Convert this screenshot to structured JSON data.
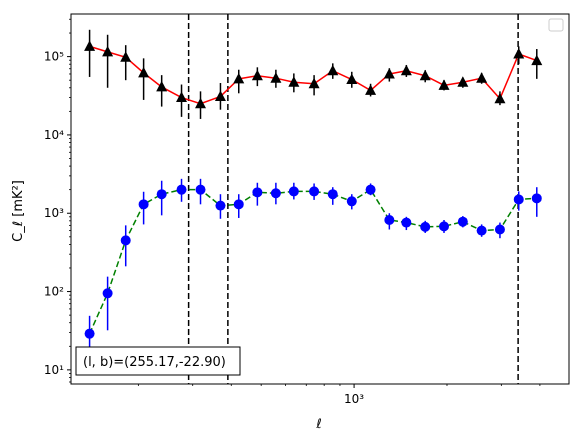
{
  "chart_data": {
    "type": "line",
    "xlabel": "ℓ",
    "ylabel": "C_ℓ [mK²]",
    "xscale": "log",
    "yscale": "log",
    "xlim": [
      121,
      4970
    ],
    "ylim": [
      6.6,
      350000
    ],
    "x_ticks": [
      {
        "value": 1000,
        "label": "10³"
      }
    ],
    "y_ticks": [
      {
        "value": 10,
        "label": "10¹"
      },
      {
        "value": 100,
        "label": "10²"
      },
      {
        "value": 1000,
        "label": "10³"
      },
      {
        "value": 10000,
        "label": "10⁴"
      },
      {
        "value": 100000,
        "label": "10⁵"
      }
    ],
    "annotation": "(l, b)=(255.17,-22.90)",
    "vlines": [
      291,
      390,
      3400
    ],
    "legend": "top-right, empty",
    "series": [
      {
        "color": "#ff0000",
        "marker": "triangle",
        "marker_color": "#000000",
        "linestyle": "solid",
        "points": [
          {
            "x": 139,
            "y": 135000,
            "lo": 55000,
            "hi": 220000
          },
          {
            "x": 159,
            "y": 115000,
            "lo": 40000,
            "hi": 190000
          },
          {
            "x": 182,
            "y": 98000,
            "lo": 50000,
            "hi": 140000
          },
          {
            "x": 208,
            "y": 62000,
            "lo": 28000,
            "hi": 95000
          },
          {
            "x": 238,
            "y": 41000,
            "lo": 23000,
            "hi": 58000
          },
          {
            "x": 276,
            "y": 30000,
            "lo": 17000,
            "hi": 44000
          },
          {
            "x": 318,
            "y": 25000,
            "lo": 16000,
            "hi": 36000
          },
          {
            "x": 369,
            "y": 31000,
            "lo": 21000,
            "hi": 46000
          },
          {
            "x": 423,
            "y": 52000,
            "lo": 34000,
            "hi": 68000
          },
          {
            "x": 486,
            "y": 57000,
            "lo": 42000,
            "hi": 73000
          },
          {
            "x": 558,
            "y": 53000,
            "lo": 40000,
            "hi": 68000
          },
          {
            "x": 638,
            "y": 47000,
            "lo": 35000,
            "hi": 61000
          },
          {
            "x": 742,
            "y": 45000,
            "lo": 32000,
            "hi": 58000
          },
          {
            "x": 853,
            "y": 66000,
            "lo": 52000,
            "hi": 82000
          },
          {
            "x": 983,
            "y": 51000,
            "lo": 40000,
            "hi": 64000
          },
          {
            "x": 1131,
            "y": 37000,
            "lo": 31000,
            "hi": 45000
          },
          {
            "x": 1301,
            "y": 60000,
            "lo": 48000,
            "hi": 71000
          },
          {
            "x": 1477,
            "y": 66000,
            "lo": 55000,
            "hi": 78000
          },
          {
            "x": 1700,
            "y": 57000,
            "lo": 47000,
            "hi": 67000
          },
          {
            "x": 1956,
            "y": 43000,
            "lo": 37000,
            "hi": 50000
          },
          {
            "x": 2251,
            "y": 47000,
            "lo": 40000,
            "hi": 54000
          },
          {
            "x": 2590,
            "y": 53000,
            "lo": 45000,
            "hi": 62000
          },
          {
            "x": 2969,
            "y": 29000,
            "lo": 24000,
            "hi": 36000
          },
          {
            "x": 3416,
            "y": 108000,
            "lo": 80000,
            "hi": 135000
          },
          {
            "x": 3908,
            "y": 89000,
            "lo": 52000,
            "hi": 125000
          }
        ]
      },
      {
        "color": "#008000",
        "marker": "circle",
        "marker_color": "#0000ff",
        "linestyle": "dashed",
        "points": [
          {
            "x": 139,
            "y": 29,
            "lo": 18,
            "hi": 49
          },
          {
            "x": 159,
            "y": 95,
            "lo": 32,
            "hi": 155
          },
          {
            "x": 182,
            "y": 450,
            "lo": 210,
            "hi": 700
          },
          {
            "x": 208,
            "y": 1300,
            "lo": 720,
            "hi": 1880
          },
          {
            "x": 238,
            "y": 1750,
            "lo": 940,
            "hi": 2600
          },
          {
            "x": 276,
            "y": 2000,
            "lo": 1400,
            "hi": 2750
          },
          {
            "x": 318,
            "y": 2000,
            "lo": 1300,
            "hi": 2750
          },
          {
            "x": 369,
            "y": 1250,
            "lo": 850,
            "hi": 1750
          },
          {
            "x": 423,
            "y": 1300,
            "lo": 870,
            "hi": 1750
          },
          {
            "x": 486,
            "y": 1850,
            "lo": 1250,
            "hi": 2450
          },
          {
            "x": 558,
            "y": 1800,
            "lo": 1300,
            "hi": 2450
          },
          {
            "x": 638,
            "y": 1900,
            "lo": 1500,
            "hi": 2450
          },
          {
            "x": 742,
            "y": 1900,
            "lo": 1480,
            "hi": 2400
          },
          {
            "x": 853,
            "y": 1750,
            "lo": 1280,
            "hi": 2150
          },
          {
            "x": 983,
            "y": 1420,
            "lo": 1120,
            "hi": 1750
          },
          {
            "x": 1131,
            "y": 2000,
            "lo": 1700,
            "hi": 2400
          },
          {
            "x": 1301,
            "y": 820,
            "lo": 620,
            "hi": 1000
          },
          {
            "x": 1477,
            "y": 760,
            "lo": 610,
            "hi": 900
          },
          {
            "x": 1700,
            "y": 670,
            "lo": 560,
            "hi": 800
          },
          {
            "x": 1956,
            "y": 680,
            "lo": 560,
            "hi": 820
          },
          {
            "x": 2251,
            "y": 780,
            "lo": 660,
            "hi": 920
          },
          {
            "x": 2590,
            "y": 600,
            "lo": 500,
            "hi": 720
          },
          {
            "x": 2969,
            "y": 620,
            "lo": 480,
            "hi": 760
          },
          {
            "x": 3416,
            "y": 1500,
            "lo": 1080,
            "hi": 1900
          },
          {
            "x": 3908,
            "y": 1550,
            "lo": 900,
            "hi": 2150
          }
        ]
      }
    ]
  }
}
